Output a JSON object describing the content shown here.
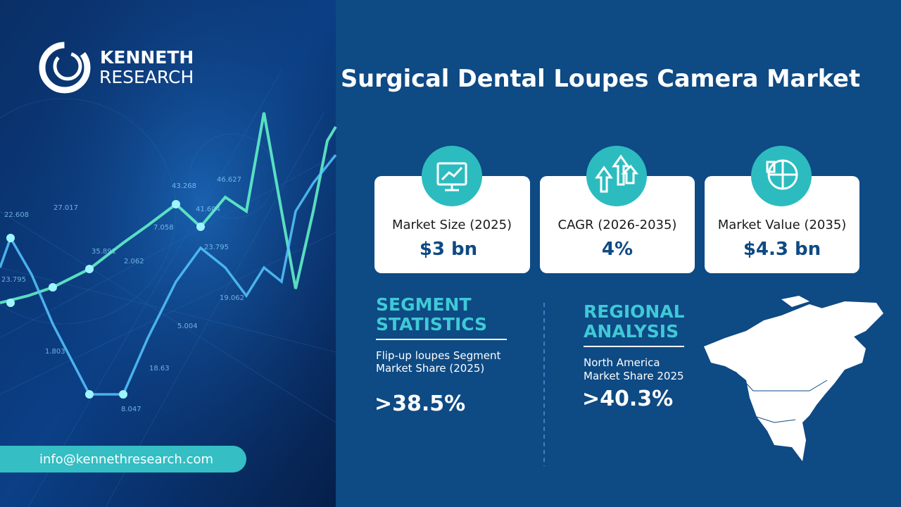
{
  "logo": {
    "line1": "KENNETH",
    "line2": "RESEARCH"
  },
  "title": "Surgical Dental Loupes Camera Market",
  "cards": [
    {
      "label": "Market Size (2025)",
      "value": "$3 bn"
    },
    {
      "label": "CAGR (2026-2035)",
      "value": "4%"
    },
    {
      "label": "Market Value  (2035)",
      "value": "$4.3 bn"
    }
  ],
  "segment": {
    "heading_lines": [
      "SEGMENT",
      "STATISTICS"
    ],
    "description_lines": [
      "Flip-up loupes  Segment",
      "Market Share (2025)"
    ],
    "value": ">38.5%"
  },
  "regional": {
    "heading_lines": [
      "REGIONAL",
      "ANALYSIS"
    ],
    "description_lines": [
      "North America",
      "Market Share 2025"
    ],
    "value": ">40.3%"
  },
  "contact": {
    "email": "info@kennethresearch.com"
  },
  "background_labels": [
    "22.608",
    "27.017",
    "23.795",
    "35.891",
    "1.803",
    "2.062",
    "43.268",
    "46.627",
    "41.604",
    "7.058",
    "23.795",
    "19.062",
    "5.004",
    "18.63",
    "8.047"
  ]
}
